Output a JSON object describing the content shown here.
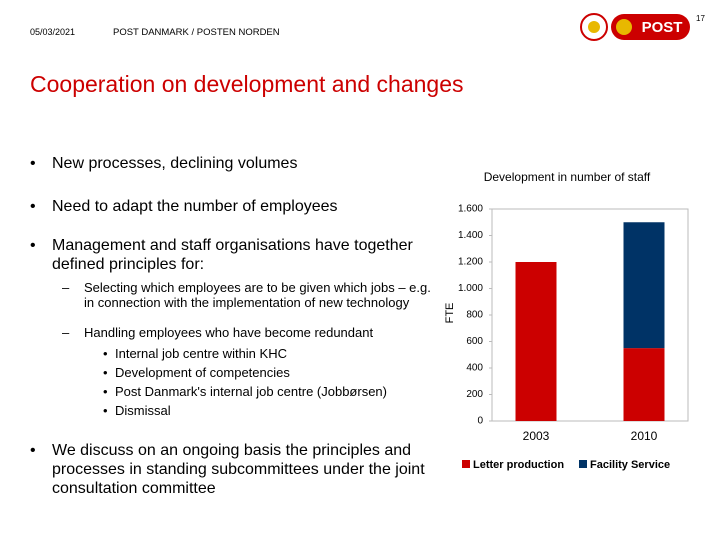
{
  "header": {
    "date": "05/03/2021",
    "organisation": "POST DANMARK / POSTEN NORDEN",
    "page": "17",
    "logo_text": "POST"
  },
  "title": "Cooperation on development and changes",
  "bullets": [
    "New processes, declining volumes",
    "Need to adapt the number of employees",
    "Management and staff organisations have together defined principles for:"
  ],
  "sub_bullets": [
    "Selecting which employees are to be given which jobs – e.g. in connection with the implementation of new technology",
    "Handling employees who have become redundant"
  ],
  "sub_sub_bullets": [
    "Internal job centre within KHC",
    "Development of competencies",
    "Post Danmark's internal job centre (Jobbørsen)",
    "Dismissal"
  ],
  "last_bullet": "We discuss on an ongoing basis the principles and processes in standing subcommittees under the joint consultation committee",
  "chart_data": {
    "type": "stacked_bar",
    "title": "Development in number of staff",
    "y_label": "FTE",
    "categories": [
      "2003",
      "2010"
    ],
    "series": [
      {
        "name": "Letter production",
        "color": "#cc0000",
        "values": [
          1200,
          550
        ]
      },
      {
        "name": "Facility Service",
        "color": "#003366",
        "values": [
          null,
          950
        ]
      }
    ],
    "ylim": [
      0,
      1600
    ],
    "yticks": [
      0,
      200,
      400,
      600,
      800,
      {
        "value": 1000,
        "label": "1.000"
      },
      {
        "value": 1200,
        "label": "1.200"
      },
      {
        "value": 1400,
        "label": "1.400"
      },
      {
        "value": 1600,
        "label": "1.600"
      }
    ]
  }
}
